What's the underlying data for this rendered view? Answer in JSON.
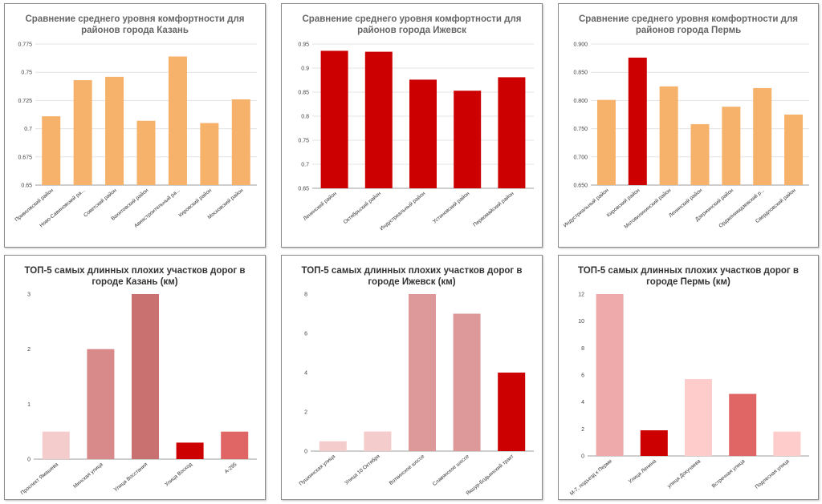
{
  "chart_data": [
    {
      "type": "bar",
      "title": "Сравнение среднего уровня комфортности для районов города Казань",
      "categories": [
        "Приволжский район",
        "Ново-Савиновский ра...",
        "Советский район",
        "Вахитовский район",
        "Авиастроительный ра...",
        "Кировский район",
        "Московский район"
      ],
      "values": [
        0.711,
        0.743,
        0.746,
        0.707,
        0.764,
        0.705,
        0.726
      ],
      "colors": [
        "#f6b26b",
        "#f6b26b",
        "#f6b26b",
        "#f6b26b",
        "#f6b26b",
        "#f6b26b",
        "#f6b26b"
      ],
      "ylim": [
        0.65,
        0.775
      ],
      "yticks": [
        0.65,
        0.675,
        0.7,
        0.725,
        0.75,
        0.775
      ],
      "ytick_labels": [
        "0.65",
        "0.675",
        "0.7",
        "0.725",
        "0.75",
        "0.775"
      ],
      "grid": true,
      "xlabel": "",
      "ylabel": ""
    },
    {
      "type": "bar",
      "title": "Сравнение среднего уровня комфортности для районов города Ижевск",
      "categories": [
        "Ленинский район",
        "Октябрьский район",
        "Индустриальный район",
        "Устиновский район",
        "Первомайский район"
      ],
      "values": [
        0.936,
        0.934,
        0.876,
        0.853,
        0.881
      ],
      "colors": [
        "#cc0000",
        "#cc0000",
        "#cc0000",
        "#cc0000",
        "#cc0000"
      ],
      "ylim": [
        0.65,
        0.95
      ],
      "yticks": [
        0.65,
        0.7,
        0.75,
        0.8,
        0.85,
        0.9,
        0.95
      ],
      "ytick_labels": [
        "0.65",
        "0.7",
        "0.75",
        "0.8",
        "0.85",
        "0.9",
        "0.95"
      ],
      "grid": true,
      "xlabel": "",
      "ylabel": ""
    },
    {
      "type": "bar",
      "title": "Сравнение среднего уровня комфортности для районов города Пермь",
      "categories": [
        "Индустриальный район",
        "Кировский район",
        "Мотовилихинский район",
        "Ленинский район",
        "Дзержинский район",
        "Орджоникидзевский р...",
        "Свердловский район"
      ],
      "values": [
        0.801,
        0.876,
        0.825,
        0.758,
        0.789,
        0.822,
        0.775
      ],
      "colors": [
        "#f6b26b",
        "#cc0000",
        "#f6b26b",
        "#f6b26b",
        "#f6b26b",
        "#f6b26b",
        "#f6b26b"
      ],
      "ylim": [
        0.65,
        0.9
      ],
      "yticks": [
        0.65,
        0.7,
        0.75,
        0.8,
        0.85,
        0.9
      ],
      "ytick_labels": [
        "0.650",
        "0.700",
        "0.750",
        "0.800",
        "0.850",
        "0.900"
      ],
      "grid": true,
      "xlabel": "",
      "ylabel": ""
    },
    {
      "type": "bar",
      "title": "ТОП-5 самых длинных плохих участков дорог в городе Казань (км)",
      "categories": [
        "Проспект Ямашева",
        "Минская улица",
        "Улица Восстания",
        "Улица Восход",
        "А-295"
      ],
      "values": [
        0.5,
        2,
        3,
        0.3,
        0.5
      ],
      "colors": [
        "#f4cccc",
        "#d88a8a",
        "#c97070",
        "#cc0000",
        "#e06666"
      ],
      "ylim": [
        0,
        3
      ],
      "yticks": [
        0,
        1,
        2,
        3
      ],
      "ytick_labels": [
        "0",
        "1",
        "2",
        "3"
      ],
      "grid": false,
      "xlabel": "",
      "ylabel": ""
    },
    {
      "type": "bar",
      "title": "ТОП-5 самых длинных плохих участков дорог в городе Ижевск (км)",
      "categories": [
        "Пушкинская улица",
        "Улица 10 Октября",
        "Воткинское шоссе",
        "Славянское шоссе",
        "Якшур-Бодьинский тракт"
      ],
      "values": [
        0.5,
        1,
        8,
        7,
        4
      ],
      "colors": [
        "#f4cccc",
        "#f4cccc",
        "#dd9999",
        "#dd9999",
        "#cc0000"
      ],
      "ylim": [
        0,
        8
      ],
      "yticks": [
        0,
        2,
        4,
        6,
        8
      ],
      "ytick_labels": [
        "0",
        "2",
        "4",
        "6",
        "8"
      ],
      "grid": false,
      "xlabel": "",
      "ylabel": ""
    },
    {
      "type": "bar",
      "title": "ТОП-5 самых длинных плохих участков дорог в городе Пермь (км)",
      "categories": [
        "М-7, подъезд к Перми",
        "Улица Ленина",
        "улица Докучаева",
        "Встречная улица",
        "Подлесная улица"
      ],
      "values": [
        12,
        1.9,
        5.7,
        4.6,
        1.8
      ],
      "colors": [
        "#eeaaaa",
        "#cc0000",
        "#ffcccc",
        "#e06666",
        "#ffcccc"
      ],
      "ylim": [
        0,
        12
      ],
      "yticks": [
        0,
        2,
        4,
        6,
        8,
        10,
        12
      ],
      "ytick_labels": [
        "0",
        "2",
        "4",
        "6",
        "8",
        "10",
        "12"
      ],
      "grid": false,
      "xlabel": "",
      "ylabel": ""
    }
  ]
}
